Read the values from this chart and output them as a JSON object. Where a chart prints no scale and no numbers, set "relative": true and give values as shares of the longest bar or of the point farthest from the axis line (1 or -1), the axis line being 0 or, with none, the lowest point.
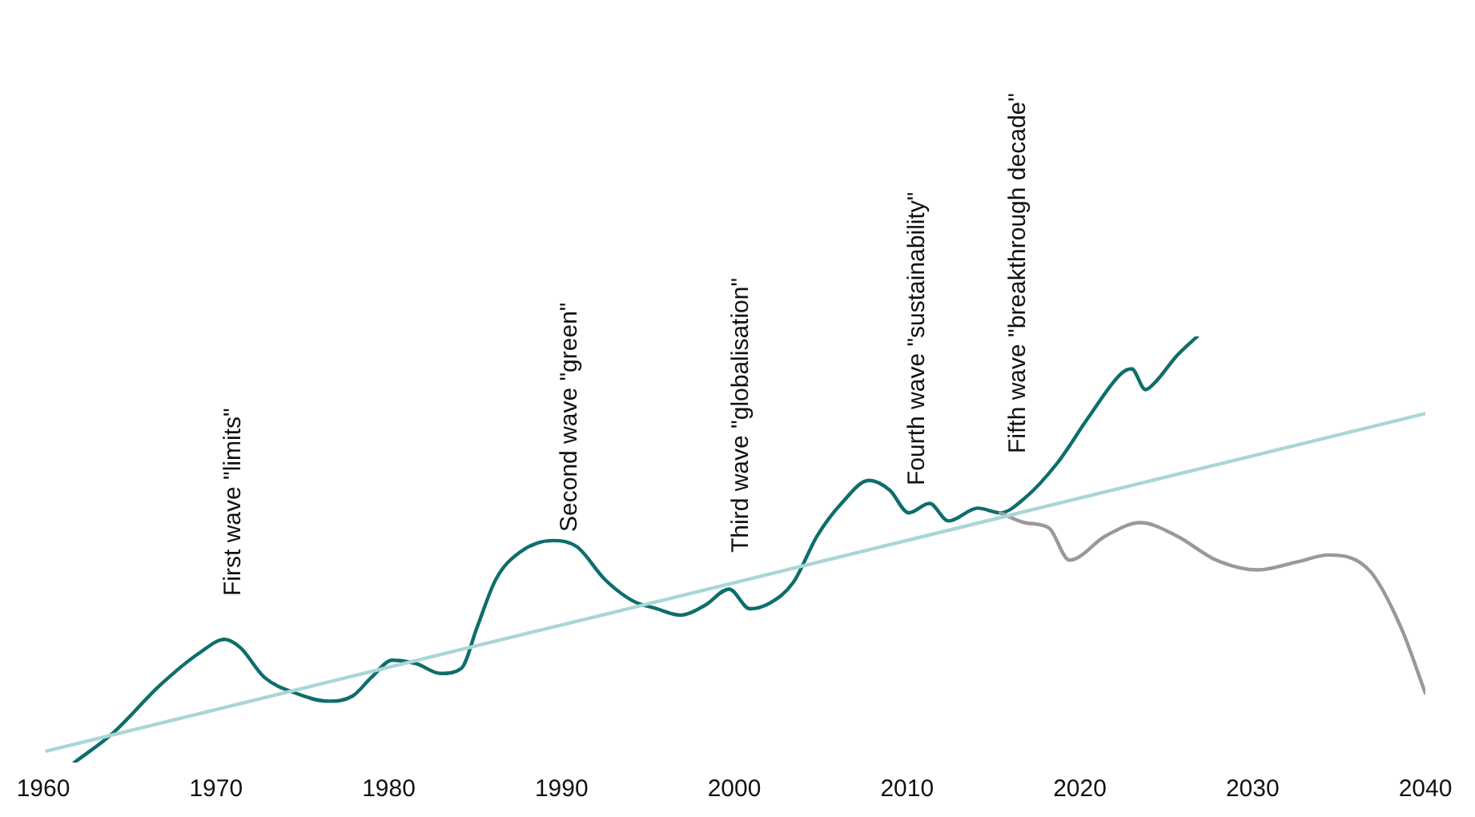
{
  "chart_data": {
    "type": "line",
    "relative": true,
    "xlim": [
      1960,
      2040
    ],
    "xticks": [
      1960,
      1970,
      1980,
      1990,
      2000,
      2010,
      2020,
      2030,
      2040
    ],
    "grid": false,
    "legend": false,
    "marker": "none",
    "line_style": "solid",
    "series": [
      {
        "color": "#a9d6d6",
        "x": [
          1960.2,
          2040
        ],
        "values": [
          0.027,
          0.819
        ]
      },
      {
        "color": "#999999",
        "x": [
          2015.4,
          2016.8,
          2018.2,
          2019.4,
          2021.5,
          2023.5,
          2025.6,
          2027.9,
          2030.3,
          2032.6,
          2034.4,
          2036.8,
          2038.6,
          2040.0
        ],
        "values": [
          0.586,
          0.563,
          0.551,
          0.475,
          0.532,
          0.563,
          0.532,
          0.475,
          0.452,
          0.471,
          0.487,
          0.449,
          0.316,
          0.163
        ]
      },
      {
        "color": "#0e6e6b",
        "x": [
          1961.8,
          1964.0,
          1966.8,
          1969.1,
          1970.5,
          1971.4,
          1972.8,
          1974.6,
          1976.5,
          1977.9,
          1979.0,
          1980.2,
          1981.6,
          1983.0,
          1984.2,
          1985.1,
          1986.2,
          1987.6,
          1989.5,
          1990.9,
          1992.5,
          1994.1,
          1995.5,
          1996.9,
          1998.3,
          1999.7,
          2000.9,
          2002.0,
          2003.4,
          2004.8,
          2006.2,
          2007.8,
          2009.0,
          2010.1,
          2011.3,
          2012.4,
          2014.1,
          2015.4,
          2016.8,
          2018.7,
          2020.5,
          2022.4,
          2023.0,
          2023.8,
          2024.4,
          2025.6,
          2026.8
        ],
        "values": [
          0,
          0.068,
          0.183,
          0.259,
          0.289,
          0.27,
          0.2,
          0.163,
          0.144,
          0.156,
          0.2,
          0.24,
          0.232,
          0.209,
          0.221,
          0.316,
          0.43,
          0.494,
          0.521,
          0.506,
          0.43,
          0.38,
          0.361,
          0.346,
          0.369,
          0.407,
          0.361,
          0.373,
          0.422,
          0.532,
          0.608,
          0.662,
          0.639,
          0.586,
          0.608,
          0.567,
          0.597,
          0.586,
          0.62,
          0.703,
          0.81,
          0.913,
          0.924,
          0.875,
          0.894,
          0.954,
          1
        ]
      }
    ],
    "annotations": [
      "First wave \"limits\"",
      "Second wave \"green\"",
      "Third wave \"globalisation\"",
      "Fourth wave \"sustainability\"",
      "Fifth wave \"breakthrough decade\""
    ]
  }
}
